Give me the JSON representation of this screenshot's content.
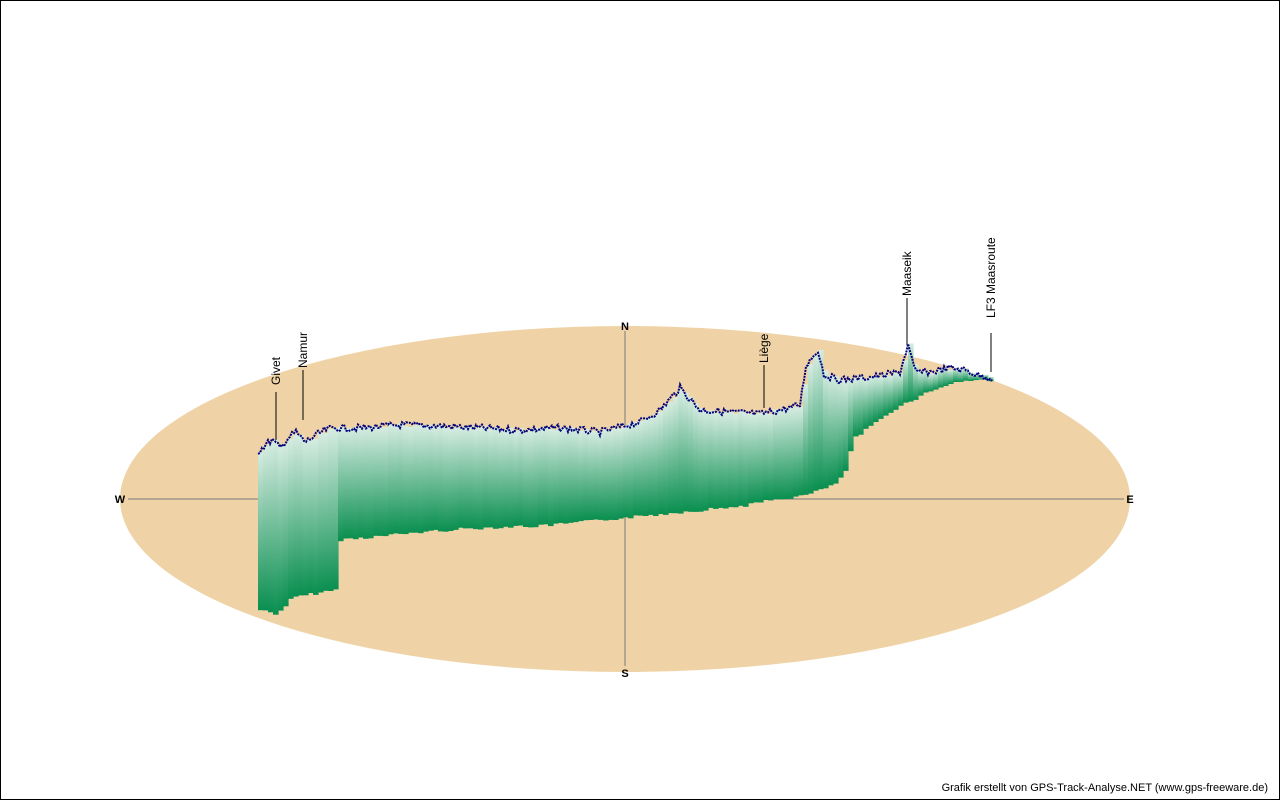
{
  "colors": {
    "ground": "#efd3a6",
    "axis": "#7a7a7a",
    "track": "#00007a",
    "curtain_top": "#d6ece1",
    "curtain_bottom": "#0a8f50"
  },
  "compass": {
    "north": "N",
    "south": "S",
    "west": "W",
    "east": "E"
  },
  "credit": "Grafik erstellt von GPS-Track-Analyse.NET (www.gps-freeware.de)",
  "chart_data": {
    "type": "area",
    "title": "",
    "description_mode": "3D elevation curtain of a GPS track over a compass ellipse (W–E, N–S)",
    "waypoints": [
      {
        "name": "Givet"
      },
      {
        "name": "Namur"
      },
      {
        "name": "Liège"
      },
      {
        "name": "Maaseik"
      },
      {
        "name": "LF3 Maasroute"
      }
    ]
  }
}
